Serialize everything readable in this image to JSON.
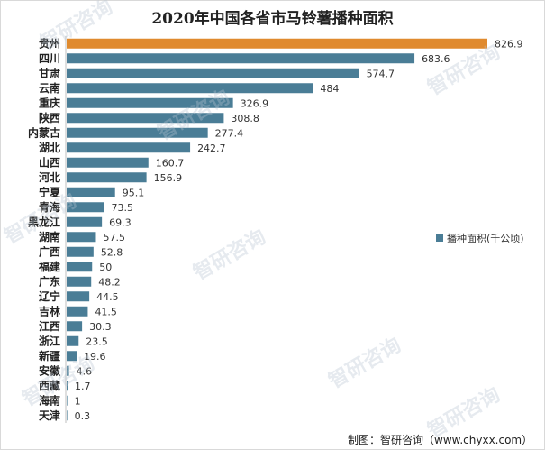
{
  "chart_data": {
    "type": "bar",
    "orientation": "horizontal",
    "title": "2020年中国各省市马铃薯播种面积",
    "categories": [
      "贵州",
      "四川",
      "甘肃",
      "云南",
      "重庆",
      "陕西",
      "内蒙古",
      "湖北",
      "山西",
      "河北",
      "宁夏",
      "青海",
      "黑龙江",
      "湖南",
      "广西",
      "福建",
      "广东",
      "辽宁",
      "吉林",
      "江西",
      "浙江",
      "新疆",
      "安徽",
      "西藏",
      "海南",
      "天津"
    ],
    "values": [
      826.9,
      683.6,
      574.7,
      484,
      326.9,
      308.8,
      277.4,
      242.7,
      160.7,
      156.9,
      95.1,
      73.5,
      69.3,
      57.5,
      52.8,
      50,
      48.2,
      44.5,
      41.5,
      30.3,
      23.5,
      19.6,
      4.6,
      1.7,
      1,
      0.3
    ],
    "value_labels": [
      "826.9",
      "683.6",
      "574.7",
      "484",
      "326.9",
      "308.8",
      "277.4",
      "242.7",
      "160.7",
      "156.9",
      "95.1",
      "73.5",
      "69.3",
      "57.5",
      "52.8",
      "50",
      "48.2",
      "44.5",
      "41.5",
      "30.3",
      "23.5",
      "19.6",
      "4.6",
      "1.7",
      "1",
      "0.3"
    ],
    "highlight_index": 0,
    "legend": "播种面积(千公顷)",
    "legend_position": "right",
    "xlabel": "",
    "ylabel": "",
    "xlim": [
      0,
      826.9
    ]
  },
  "colors": {
    "bar": "#4a7d96",
    "highlight": "#e08a2e",
    "axis": "#bfbfbf"
  },
  "source": "制图：智研咨询（www.chyxx.com）",
  "watermark": {
    "brand": "智研咨询",
    "url": "www.chyxx.com"
  }
}
